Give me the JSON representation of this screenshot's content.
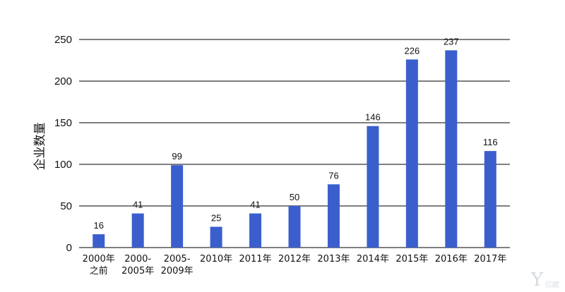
{
  "chart_data": {
    "type": "bar",
    "ylabel": "企业数量",
    "ylim": [
      0,
      250
    ],
    "yticks": [
      0,
      50,
      100,
      150,
      200,
      250
    ],
    "grid": true,
    "bar_color": "#3a5fcd",
    "categories": [
      [
        "2000年",
        "之前"
      ],
      [
        "2000-",
        "2005年"
      ],
      [
        "2005-",
        "2009年"
      ],
      [
        "2010年"
      ],
      [
        "2011年"
      ],
      [
        "2012年"
      ],
      [
        "2013年"
      ],
      [
        "2014年"
      ],
      [
        "2015年"
      ],
      [
        "2016年"
      ],
      [
        "2017年"
      ]
    ],
    "values": [
      16,
      41,
      99,
      25,
      41,
      50,
      76,
      146,
      226,
      237,
      116
    ]
  },
  "watermark": {
    "logo_text": "亿欧"
  }
}
